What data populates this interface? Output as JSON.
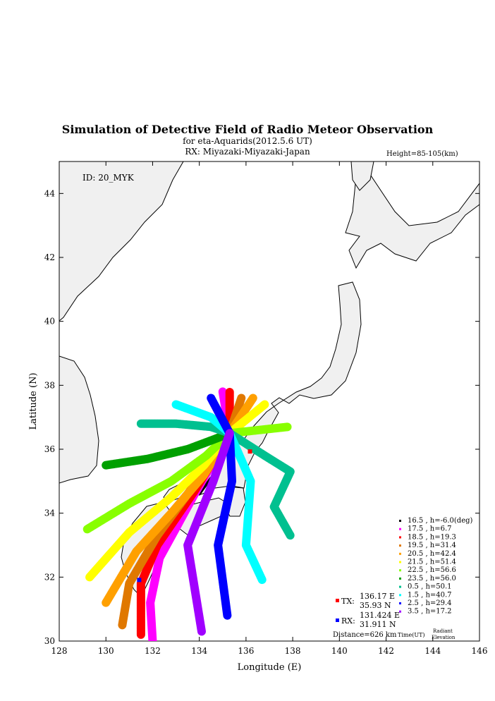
{
  "title": "Simulation of Detective Field of Radio Meteor Observation",
  "subtitle": "for eta-Aquarids(2012.5.6 UT)",
  "rx_label": "RX: Miyazaki-Miyazaki-Japan",
  "height_label": "Height=85-105(km)",
  "id_label": "ID: 20_MYK",
  "axes": {
    "xlabel": "Longitude (E)",
    "ylabel": "Latitude (N)",
    "xlim": [
      128,
      146
    ],
    "ylim": [
      30,
      45
    ],
    "xticks": [
      "128",
      "130",
      "132",
      "134",
      "136",
      "138",
      "140",
      "142",
      "144",
      "146"
    ],
    "yticks": [
      "30",
      "32",
      "34",
      "36",
      "38",
      "40",
      "42",
      "44"
    ]
  },
  "stations": {
    "tx": {
      "label": "TX:",
      "lon": "136.17 E",
      "lat": "35.93 N",
      "color": "#ff0000",
      "x": 136.17,
      "y": 35.93
    },
    "rx": {
      "label": "RX:",
      "lon": "131.424 E",
      "lat": "31.911 N",
      "color": "#0000ff",
      "x": 131.424,
      "y": 31.911
    },
    "distance": "Distance=626 km"
  },
  "legend": {
    "time_header": "Time(UT)",
    "radiant_header_1": "Radiant",
    "radiant_header_2": "Elevation",
    "entries": [
      {
        "text": "16.5 ,  h=-6.0(deg)",
        "color": "#000000"
      },
      {
        "text": "17.5 ,  h=6.7",
        "color": "#ff00ff"
      },
      {
        "text": "18.5 ,  h=19.3",
        "color": "#ff0000"
      },
      {
        "text": "19.5 ,  h=31.4",
        "color": "#e07800"
      },
      {
        "text": "20.5 ,  h=42.4",
        "color": "#ffa000"
      },
      {
        "text": "21.5 ,  h=51.4",
        "color": "#ffff00"
      },
      {
        "text": "22.5 ,  h=56.6",
        "color": "#88ff00"
      },
      {
        "text": "23.5 ,  h=56.0",
        "color": "#00a000"
      },
      {
        "text": "0.5 ,  h=50.1",
        "color": "#00c090"
      },
      {
        "text": "1.5 ,  h=40.7",
        "color": "#00ffff"
      },
      {
        "text": "2.5 ,  h=29.4",
        "color": "#0000ff"
      },
      {
        "text": "3.5 ,  h=17.2",
        "color": "#a000ff"
      }
    ]
  },
  "chart_data": {
    "type": "scatter",
    "title": "Simulation of Detective Field of Radio Meteor Observation",
    "xlabel": "Longitude (E)",
    "ylabel": "Latitude (N)",
    "xlim": [
      128,
      146
    ],
    "ylim": [
      30,
      45
    ],
    "series": [
      {
        "name": "16.5 ,  h=-6.0(deg)",
        "color": "#000000",
        "points": [
          [
            134.0,
            34.6
          ],
          [
            134.5,
            35.1
          ]
        ]
      },
      {
        "name": "17.5 ,  h=6.7",
        "color": "#ff00ff",
        "points": [
          [
            132.0,
            30.0
          ],
          [
            131.9,
            31.2
          ],
          [
            132.3,
            32.6
          ],
          [
            133.8,
            34.6
          ],
          [
            135.3,
            36.5
          ],
          [
            135.0,
            37.8
          ]
        ]
      },
      {
        "name": "18.5 ,  h=19.3",
        "color": "#ff0000",
        "points": [
          [
            131.5,
            30.2
          ],
          [
            131.5,
            31.8
          ],
          [
            132.2,
            33.0
          ],
          [
            133.8,
            34.7
          ],
          [
            135.3,
            36.5
          ],
          [
            135.3,
            37.8
          ]
        ]
      },
      {
        "name": "19.5 ,  h=31.4",
        "color": "#e07800",
        "points": [
          [
            130.7,
            30.5
          ],
          [
            131.0,
            31.8
          ],
          [
            132.2,
            33.3
          ],
          [
            133.8,
            34.9
          ],
          [
            135.3,
            36.5
          ],
          [
            135.8,
            37.6
          ]
        ]
      },
      {
        "name": "20.5 ,  h=42.4",
        "color": "#ffa000",
        "points": [
          [
            130.0,
            31.2
          ],
          [
            131.3,
            32.8
          ],
          [
            132.8,
            34.0
          ],
          [
            134.2,
            35.2
          ],
          [
            135.3,
            36.5
          ],
          [
            136.3,
            37.6
          ]
        ]
      },
      {
        "name": "21.5 ,  h=51.4",
        "color": "#ffff00",
        "points": [
          [
            129.3,
            32.0
          ],
          [
            131.0,
            33.4
          ],
          [
            132.8,
            34.5
          ],
          [
            134.2,
            35.5
          ],
          [
            135.3,
            36.5
          ],
          [
            136.8,
            37.4
          ]
        ]
      },
      {
        "name": "22.5 ,  h=56.6",
        "color": "#88ff00",
        "points": [
          [
            129.2,
            33.5
          ],
          [
            131.0,
            34.3
          ],
          [
            132.8,
            35.0
          ],
          [
            134.3,
            35.8
          ],
          [
            135.3,
            36.5
          ],
          [
            137.8,
            36.7
          ]
        ]
      },
      {
        "name": "23.5 ,  h=56.0",
        "color": "#00a000",
        "points": [
          [
            130.0,
            35.5
          ],
          [
            131.8,
            35.7
          ],
          [
            133.5,
            36.0
          ],
          [
            134.6,
            36.3
          ],
          [
            135.3,
            36.5
          ]
        ]
      },
      {
        "name": "0.5 ,  h=50.1",
        "color": "#00c090",
        "points": [
          [
            131.5,
            36.8
          ],
          [
            133.0,
            36.8
          ],
          [
            134.5,
            36.7
          ],
          [
            135.3,
            36.5
          ],
          [
            136.8,
            35.8
          ],
          [
            137.9,
            35.3
          ],
          [
            137.2,
            34.2
          ],
          [
            137.9,
            33.3
          ]
        ]
      },
      {
        "name": "1.5 ,  h=40.7",
        "color": "#00ffff",
        "points": [
          [
            133.0,
            37.4
          ],
          [
            134.5,
            37.0
          ],
          [
            135.3,
            36.5
          ],
          [
            136.2,
            35.0
          ],
          [
            136.0,
            33.0
          ],
          [
            136.7,
            31.9
          ]
        ]
      },
      {
        "name": "2.5 ,  h=29.4",
        "color": "#0000ff",
        "points": [
          [
            134.5,
            37.6
          ],
          [
            135.3,
            36.5
          ],
          [
            135.4,
            35.0
          ],
          [
            134.8,
            33.0
          ],
          [
            135.2,
            30.8
          ]
        ]
      },
      {
        "name": "3.5 ,  h=17.2",
        "color": "#a000ff",
        "points": [
          [
            135.3,
            36.5
          ],
          [
            134.6,
            35.0
          ],
          [
            133.5,
            33.0
          ],
          [
            134.1,
            30.3
          ]
        ]
      }
    ],
    "stations": [
      {
        "name": "TX",
        "x": 136.17,
        "y": 35.93
      },
      {
        "name": "RX",
        "x": 131.424,
        "y": 31.911
      }
    ]
  }
}
